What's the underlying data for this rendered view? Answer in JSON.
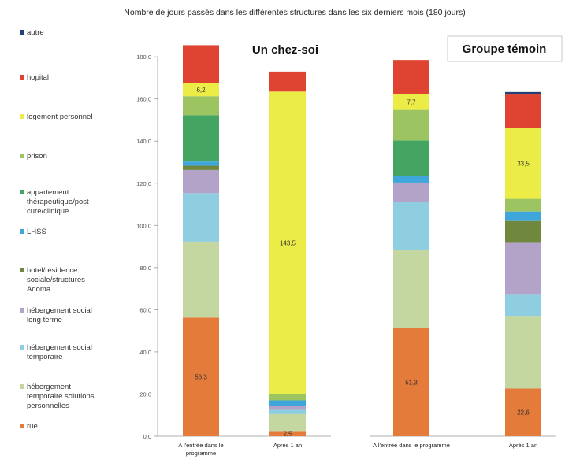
{
  "chart_data": {
    "type": "bar",
    "stacked": true,
    "title": "Nombre de jours passés dans les différentes structures dans les six derniers mois (180 jours)",
    "ylim": [
      0,
      180
    ],
    "yticks": [
      "0,0",
      "20,0",
      "40,0",
      "60,0",
      "80,0",
      "100,0",
      "120,0",
      "140,0",
      "160,0",
      "180,0"
    ],
    "legend_position": "left",
    "grid": false,
    "categories": [
      [
        "A l'entrée dans le",
        "programme"
      ],
      [
        "Après 1 an"
      ],
      [
        "A l'entrée dans le programme"
      ],
      [
        "Après 1 an"
      ]
    ],
    "panels": [
      {
        "title": "Un chez-soi",
        "category_index": [
          0,
          1
        ]
      },
      {
        "title": "Groupe témoin",
        "category_index": [
          2,
          3
        ]
      }
    ],
    "legend": [
      {
        "name": "autre",
        "color": "#243f73"
      },
      {
        "name": "hopital",
        "color": "#de4431"
      },
      {
        "name": "logement personnel",
        "color": "#ecec46"
      },
      {
        "name": "prison",
        "color": "#9cc561"
      },
      {
        "name": "appartement thérapeutique/post cure/clinique",
        "color": "#44a461"
      },
      {
        "name": "LHSS",
        "color": "#3ea6da"
      },
      {
        "name": "hotel/résidence sociale/structures Adoma",
        "color": "#6f883e"
      },
      {
        "name": "hébergement social long terme",
        "color": "#b3a3c9"
      },
      {
        "name": "hébergement social temporaire",
        "color": "#8fcde0"
      },
      {
        "name": "hébergement temporaire solutions personnelles",
        "color": "#c4d7a1"
      },
      {
        "name": "rue",
        "color": "#e57b3a"
      }
    ],
    "series": [
      {
        "values": [
          56.3,
          2.5,
          51.3,
          22.6
        ],
        "labels": [
          "56,3",
          "2,5",
          "51,3",
          "22,6"
        ]
      },
      {
        "values": [
          36,
          8,
          37,
          34.5
        ]
      },
      {
        "values": [
          23,
          2,
          23,
          10
        ]
      },
      {
        "values": [
          11,
          2,
          9,
          25
        ]
      },
      {
        "values": [
          2,
          0,
          0,
          10
        ]
      },
      {
        "values": [
          2,
          2.5,
          3,
          4.5
        ]
      },
      {
        "values": [
          22,
          0,
          17,
          0
        ]
      },
      {
        "values": [
          9,
          3,
          14.5,
          6
        ]
      },
      {
        "values": [
          6.2,
          143.5,
          7.7,
          33.5
        ],
        "labels": [
          "6,2",
          "143,5",
          "7,7",
          "33,5"
        ]
      },
      {
        "values": [
          18,
          9.5,
          16,
          16
        ]
      },
      {
        "values": [
          0,
          0,
          0,
          1.2
        ]
      }
    ]
  }
}
